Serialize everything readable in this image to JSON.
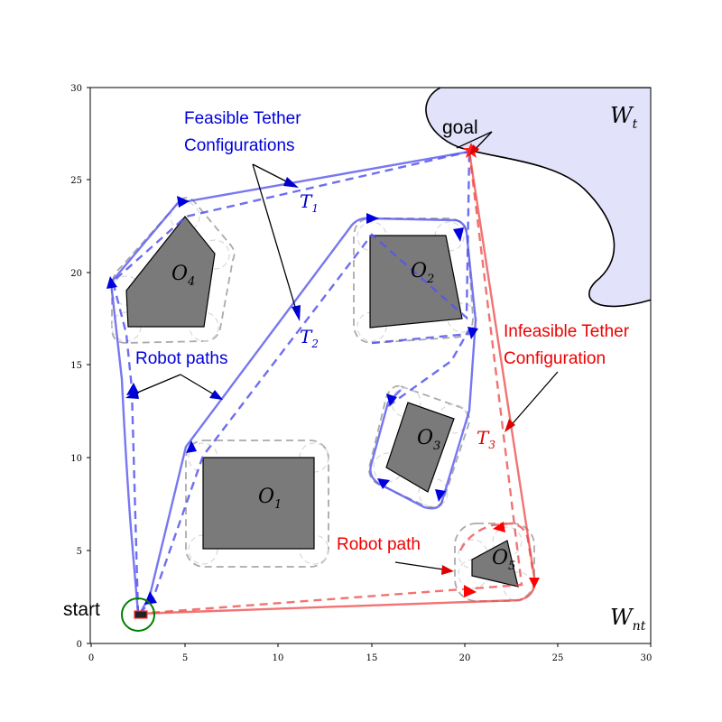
{
  "chart_data": {
    "type": "diagram",
    "x_ticks": [
      "0",
      "5",
      "10",
      "15",
      "20",
      "25",
      "30"
    ],
    "y_ticks": [
      "0",
      "5",
      "10",
      "15",
      "20",
      "25",
      "30"
    ],
    "xlim": [
      0,
      30
    ],
    "ylim": [
      0,
      30
    ],
    "obstacles": [
      {
        "name": "O",
        "sub": "1",
        "vertices": [
          [
            6,
            5
          ],
          [
            12,
            5
          ],
          [
            12,
            10
          ],
          [
            6,
            10
          ]
        ],
        "label_at": [
          9.5,
          7.8
        ]
      },
      {
        "name": "O",
        "sub": "2",
        "vertices": [
          [
            15.1,
            17
          ],
          [
            19.9,
            17.5
          ],
          [
            19,
            22
          ],
          [
            15.1,
            22
          ]
        ],
        "label_at": [
          17.5,
          19.9
        ]
      },
      {
        "name": "O",
        "sub": "3",
        "vertices": [
          [
            15.9,
            9.5
          ],
          [
            17.2,
            13
          ],
          [
            19.6,
            12
          ],
          [
            18.6,
            8.3
          ]
        ],
        "label_at": [
          18,
          11
        ]
      },
      {
        "name": "O",
        "sub": "4",
        "vertices": [
          [
            2,
            17
          ],
          [
            6.1,
            17
          ],
          [
            6.7,
            21
          ],
          [
            5.1,
            23
          ],
          [
            1.9,
            19
          ]
        ],
        "label_at": [
          5,
          19.8
        ]
      },
      {
        "name": "O",
        "sub": "5",
        "vertices": [
          [
            21,
            4.5
          ],
          [
            21,
            5.5
          ],
          [
            22.6,
            6.5
          ],
          [
            23.3,
            3
          ],
          [
            22.6,
            3
          ]
        ],
        "label_at": [
          22.4,
          4.3
        ]
      }
    ],
    "regions": {
      "tether_region": {
        "name": "W",
        "sub": "t"
      },
      "non_tether_region": {
        "name": "W",
        "sub": "nt"
      }
    },
    "start_point": [
      2.5,
      1.5
    ],
    "goal_point": [
      20.5,
      26.5
    ],
    "tether_labels": [
      {
        "name": "T",
        "sub": "1",
        "at": [
          12,
          23.9
        ],
        "color": "#0000cc"
      },
      {
        "name": "T",
        "sub": "2",
        "at": [
          12,
          16.3
        ],
        "color": "#0000cc"
      },
      {
        "name": "T",
        "sub": "3",
        "at": [
          21.8,
          10.9
        ],
        "color": "#dd0000"
      }
    ],
    "annotations": {
      "start": "start",
      "goal": "goal",
      "feasible_line1": "Feasible Tether",
      "feasible_line2": "Configurations",
      "robot_paths": "Robot paths",
      "infeasible_line1": "Infeasible Tether",
      "infeasible_line2": "Configuration",
      "robot_path": "Robot path"
    },
    "colors": {
      "feasible": "#0000cc",
      "infeasible": "#ff0000",
      "obstacle_fill": "#7a7a7a",
      "tether_region_fill": "#e2e2fb",
      "start_circle": "#008000"
    }
  }
}
